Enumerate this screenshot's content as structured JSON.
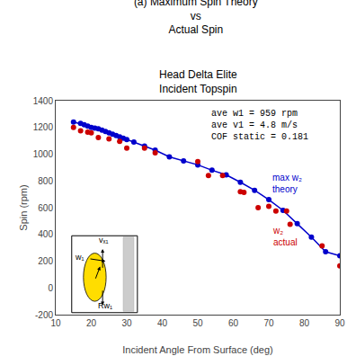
{
  "chart_data": {
    "type": "scatter",
    "title": "(a) Maximum Spin Theory\nvs\nActual Spin",
    "subtitle": "Head Delta Elite\nIncident Topspin",
    "x_label": "Incident Angle From Surface (deg)",
    "y_label": "Spin (rpm)",
    "xlim": [
      10,
      90
    ],
    "ylim": [
      -200,
      1400
    ],
    "xticks": [
      10,
      20,
      30,
      40,
      50,
      60,
      70,
      80,
      90
    ],
    "yticks": [
      -200,
      0,
      200,
      400,
      600,
      800,
      1000,
      1200,
      1400
    ],
    "grid": false,
    "annotations": [
      "ave w1 = 959 rpm\nave v1 = 4.8 m/s\nCOF static = 0.181",
      "vₓ₁",
      "Rw₁",
      "w₁"
    ],
    "series": [
      {
        "name": "max w₂\ntheory",
        "type": "line",
        "marker": "circle",
        "color": "#0000cc",
        "x": [
          15,
          17,
          18,
          19,
          20,
          21,
          22,
          23,
          24,
          25,
          26,
          27,
          28,
          29,
          30,
          32,
          35,
          38,
          42,
          46,
          50,
          54,
          58,
          62,
          66,
          70,
          74,
          78,
          82,
          86,
          90
        ],
        "values": [
          1240,
          1230,
          1220,
          1210,
          1200,
          1195,
          1190,
          1180,
          1170,
          1160,
          1150,
          1140,
          1130,
          1120,
          1110,
          1090,
          1060,
          1030,
          980,
          950,
          920,
          880,
          845,
          790,
          730,
          660,
          580,
          480,
          380,
          270,
          240
        ]
      },
      {
        "name": "w₂\nactual",
        "type": "scatter",
        "marker": "circle",
        "color": "#cc0000",
        "x": [
          15,
          17,
          19,
          20,
          22,
          25,
          28,
          30,
          35,
          38,
          50,
          53,
          57,
          62,
          63,
          67,
          70,
          72,
          75,
          76,
          85,
          90
        ],
        "values": [
          1200,
          1175,
          1165,
          1160,
          1125,
          1115,
          1095,
          1045,
          1045,
          1010,
          945,
          840,
          840,
          720,
          715,
          600,
          610,
          575,
          575,
          475,
          315,
          165
        ]
      }
    ]
  }
}
